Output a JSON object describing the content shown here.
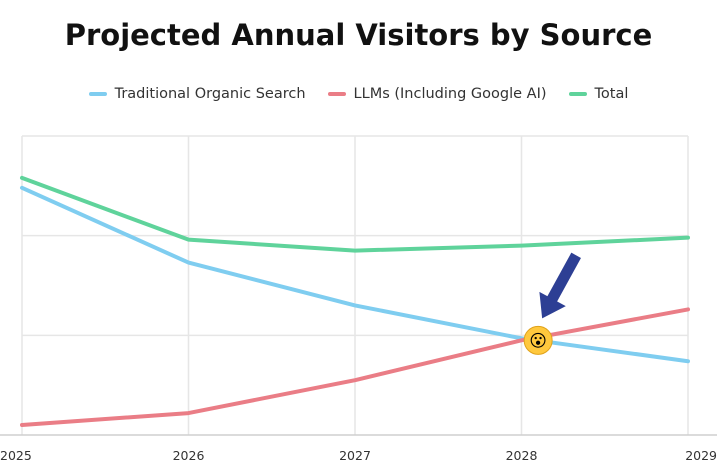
{
  "chart_data": {
    "type": "line",
    "title": "Projected Annual Visitors by Source",
    "xlabel": "",
    "ylabel": "",
    "x": [
      "2025",
      "2026",
      "2027",
      "2028",
      "2029"
    ],
    "xlim": [
      2025,
      2029
    ],
    "ylim": [
      0,
      3
    ],
    "grid": "horizontal",
    "legend_placement": "top",
    "series": [
      {
        "name": "Traditional Organic Search",
        "color": "#7fcdf0",
        "values": [
          2.48,
          1.73,
          1.3,
          0.97,
          0.74
        ]
      },
      {
        "name": "LLMs (Including Google AI)",
        "color": "#ea7d86",
        "values": [
          0.1,
          0.22,
          0.55,
          0.95,
          1.26
        ]
      },
      {
        "name": "Total",
        "color": "#5fd39b",
        "values": [
          2.58,
          1.96,
          1.85,
          1.9,
          1.98
        ]
      }
    ],
    "annotations": [
      {
        "type": "arrow",
        "color": "#2d3f94",
        "points_to": {
          "x": 2028.1,
          "y": 0.95
        }
      },
      {
        "type": "emoji",
        "glyph": "😮",
        "at": {
          "x": 2028.1,
          "y": 0.95
        }
      }
    ]
  }
}
